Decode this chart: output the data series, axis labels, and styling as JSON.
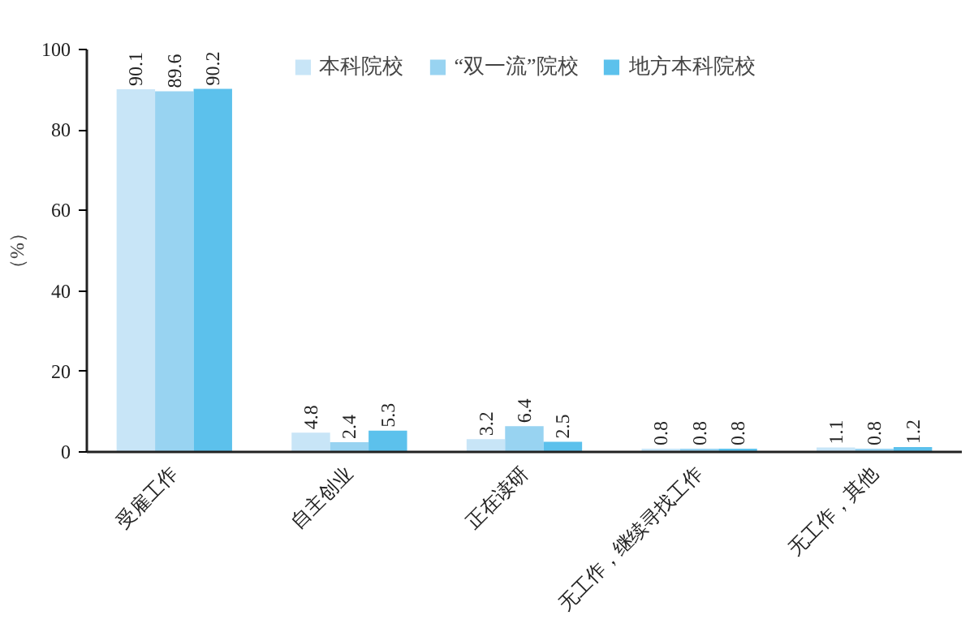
{
  "chart_data": {
    "type": "bar",
    "ylabel": "（%）",
    "categories": [
      "受雇工作",
      "自主创业",
      "正在读研",
      "无工作，继续寻找工作",
      "无工作，其他"
    ],
    "series": [
      {
        "name": "本科院校",
        "color": "#c8e5f7",
        "values": [
          90.1,
          4.8,
          3.2,
          0.8,
          1.1
        ]
      },
      {
        "name": "“双一流”院校",
        "color": "#98d3f1",
        "values": [
          89.6,
          2.4,
          6.4,
          0.8,
          0.8
        ]
      },
      {
        "name": "地方本科院校",
        "color": "#5cc1ec",
        "values": [
          90.2,
          5.3,
          2.5,
          0.8,
          1.2
        ]
      }
    ],
    "ylim": [
      0,
      100
    ],
    "yticks": [
      0,
      20,
      40,
      60,
      80,
      100
    ],
    "grid": false,
    "legend": "top",
    "data_labels": true
  }
}
